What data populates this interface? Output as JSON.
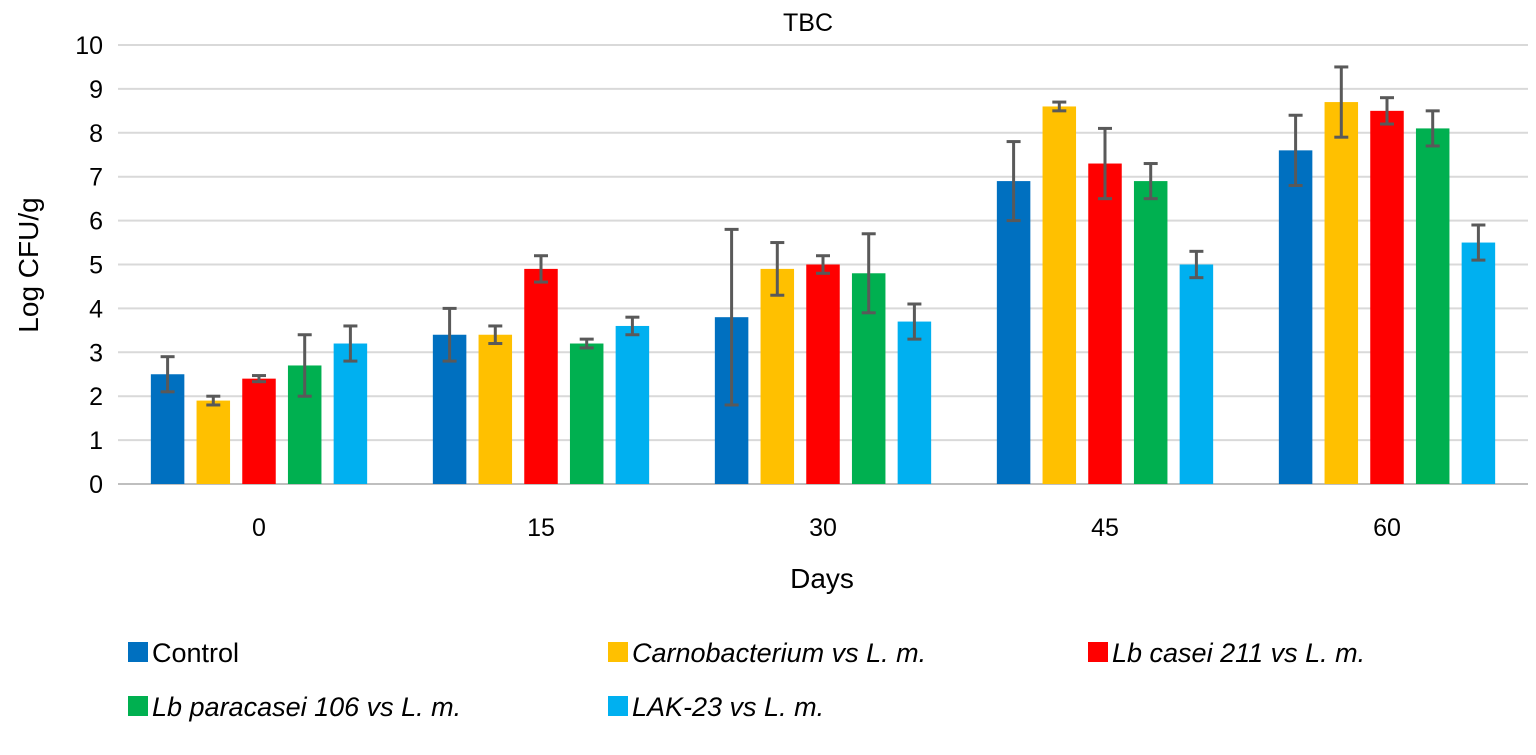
{
  "chart_data": {
    "type": "bar",
    "title": "TBC",
    "xlabel": "Days",
    "ylabel": "Log CFU/g",
    "ylim": [
      0,
      10
    ],
    "yticks": [
      0,
      1,
      2,
      3,
      4,
      5,
      6,
      7,
      8,
      9,
      10
    ],
    "grid": true,
    "legend_position": "bottom",
    "categories": [
      "0",
      "15",
      "30",
      "45",
      "60"
    ],
    "series": [
      {
        "name": "Control",
        "italic": false,
        "color": "#0070C0",
        "values": [
          2.5,
          3.4,
          3.8,
          6.9,
          7.6
        ],
        "errors": [
          0.4,
          0.6,
          2.0,
          0.9,
          0.8
        ]
      },
      {
        "name": "Carnobacterium vs L. m.",
        "italic": true,
        "color": "#FFC000",
        "values": [
          1.9,
          3.4,
          4.9,
          8.6,
          8.7
        ],
        "errors": [
          0.1,
          0.2,
          0.6,
          0.1,
          0.8
        ]
      },
      {
        "name": "Lb casei 211 vs L. m.",
        "italic": true,
        "color": "#FF0000",
        "values": [
          2.4,
          4.9,
          5.0,
          7.3,
          8.5
        ],
        "errors": [
          0.07,
          0.3,
          0.2,
          0.8,
          0.3
        ]
      },
      {
        "name": "Lb paracasei 106 vs L. m.",
        "italic": true,
        "color": "#00B050",
        "values": [
          2.7,
          3.2,
          4.8,
          6.9,
          8.1
        ],
        "errors": [
          0.7,
          0.1,
          0.9,
          0.4,
          0.4
        ]
      },
      {
        "name": "LAK-23 vs L. m.",
        "italic": true,
        "color": "#00B0F0",
        "values": [
          3.2,
          3.6,
          3.7,
          5.0,
          5.5
        ],
        "errors": [
          0.4,
          0.2,
          0.4,
          0.3,
          0.4
        ]
      }
    ]
  }
}
